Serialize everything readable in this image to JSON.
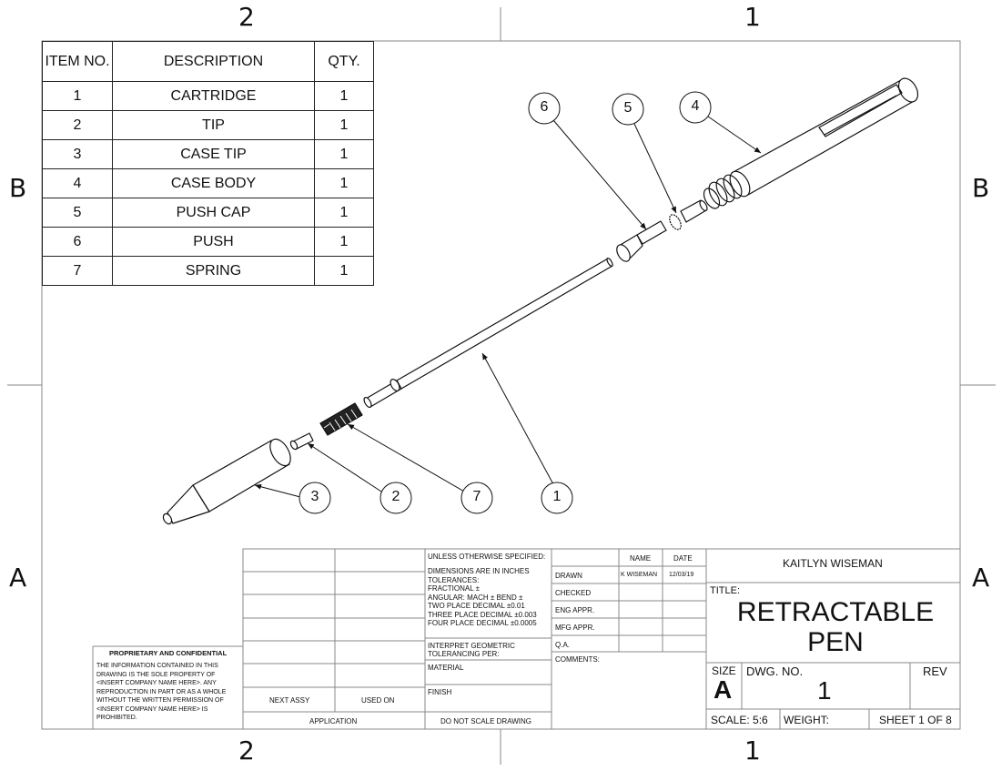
{
  "zones": {
    "top_left": "2",
    "top_right": "1",
    "bottom_left": "2",
    "bottom_right": "1",
    "left_upper": "B",
    "left_lower": "A",
    "right_upper": "B",
    "right_lower": "A"
  },
  "bom": {
    "headers": [
      "ITEM NO.",
      "DESCRIPTION",
      "QTY."
    ],
    "rows": [
      [
        "1",
        "CARTRIDGE",
        "1"
      ],
      [
        "2",
        "TIP",
        "1"
      ],
      [
        "3",
        "CASE TIP",
        "1"
      ],
      [
        "4",
        "CASE BODY",
        "1"
      ],
      [
        "5",
        "PUSH CAP",
        "1"
      ],
      [
        "6",
        "PUSH",
        "1"
      ],
      [
        "7",
        "SPRING",
        "1"
      ]
    ]
  },
  "balloons": [
    "6",
    "5",
    "4",
    "3",
    "2",
    "7",
    "1"
  ],
  "title_block": {
    "proprietary_title": "PROPRIETARY AND CONFIDENTIAL",
    "proprietary_lines": [
      "THE INFORMATION CONTAINED IN THIS",
      "DRAWING IS THE SOLE PROPERTY OF",
      "<INSERT COMPANY NAME HERE>.  ANY",
      "REPRODUCTION IN PART OR AS A WHOLE",
      "WITHOUT THE WRITTEN PERMISSION OF",
      "<INSERT COMPANY NAME HERE> IS",
      "PROHIBITED."
    ],
    "next_assy": "NEXT ASSY",
    "used_on": "USED ON",
    "application": "APPLICATION",
    "unless": "UNLESS OTHERWISE SPECIFIED:",
    "tolerance_lines": [
      "DIMENSIONS ARE IN INCHES",
      "TOLERANCES:",
      "FRACTIONAL ±",
      "ANGULAR: MACH ±    BEND ±",
      "TWO PLACE DECIMAL    ±0.01",
      "THREE PLACE DECIMAL  ±0.003",
      "FOUR PLACE DECIMAL  ±0.0005"
    ],
    "interpret": [
      "INTERPRET GEOMETRIC",
      "TOLERANCING PER:"
    ],
    "material": "MATERIAL",
    "finish": "FINISH",
    "do_not_scale": "DO NOT SCALE DRAWING",
    "name_header": "NAME",
    "date_header": "DATE",
    "drawn": "DRAWN",
    "drawn_name": "K WISEMAN",
    "drawn_date": "12/03/19",
    "checked": "CHECKED",
    "eng_appr": "ENG APPR.",
    "mfg_appr": "MFG APPR.",
    "qa": "Q.A.",
    "comments": "COMMENTS:",
    "company": "KAITLYN WISEMAN",
    "title_label": "TITLE:",
    "title_line1": "RETRACTABLE",
    "title_line2": "PEN",
    "size_label": "SIZE",
    "size_value": "A",
    "dwg_label": "DWG.  NO.",
    "dwg_value": "1",
    "rev_label": "REV",
    "scale": "SCALE: 5:6",
    "weight": "WEIGHT:",
    "sheet": "SHEET 1 OF 8"
  }
}
